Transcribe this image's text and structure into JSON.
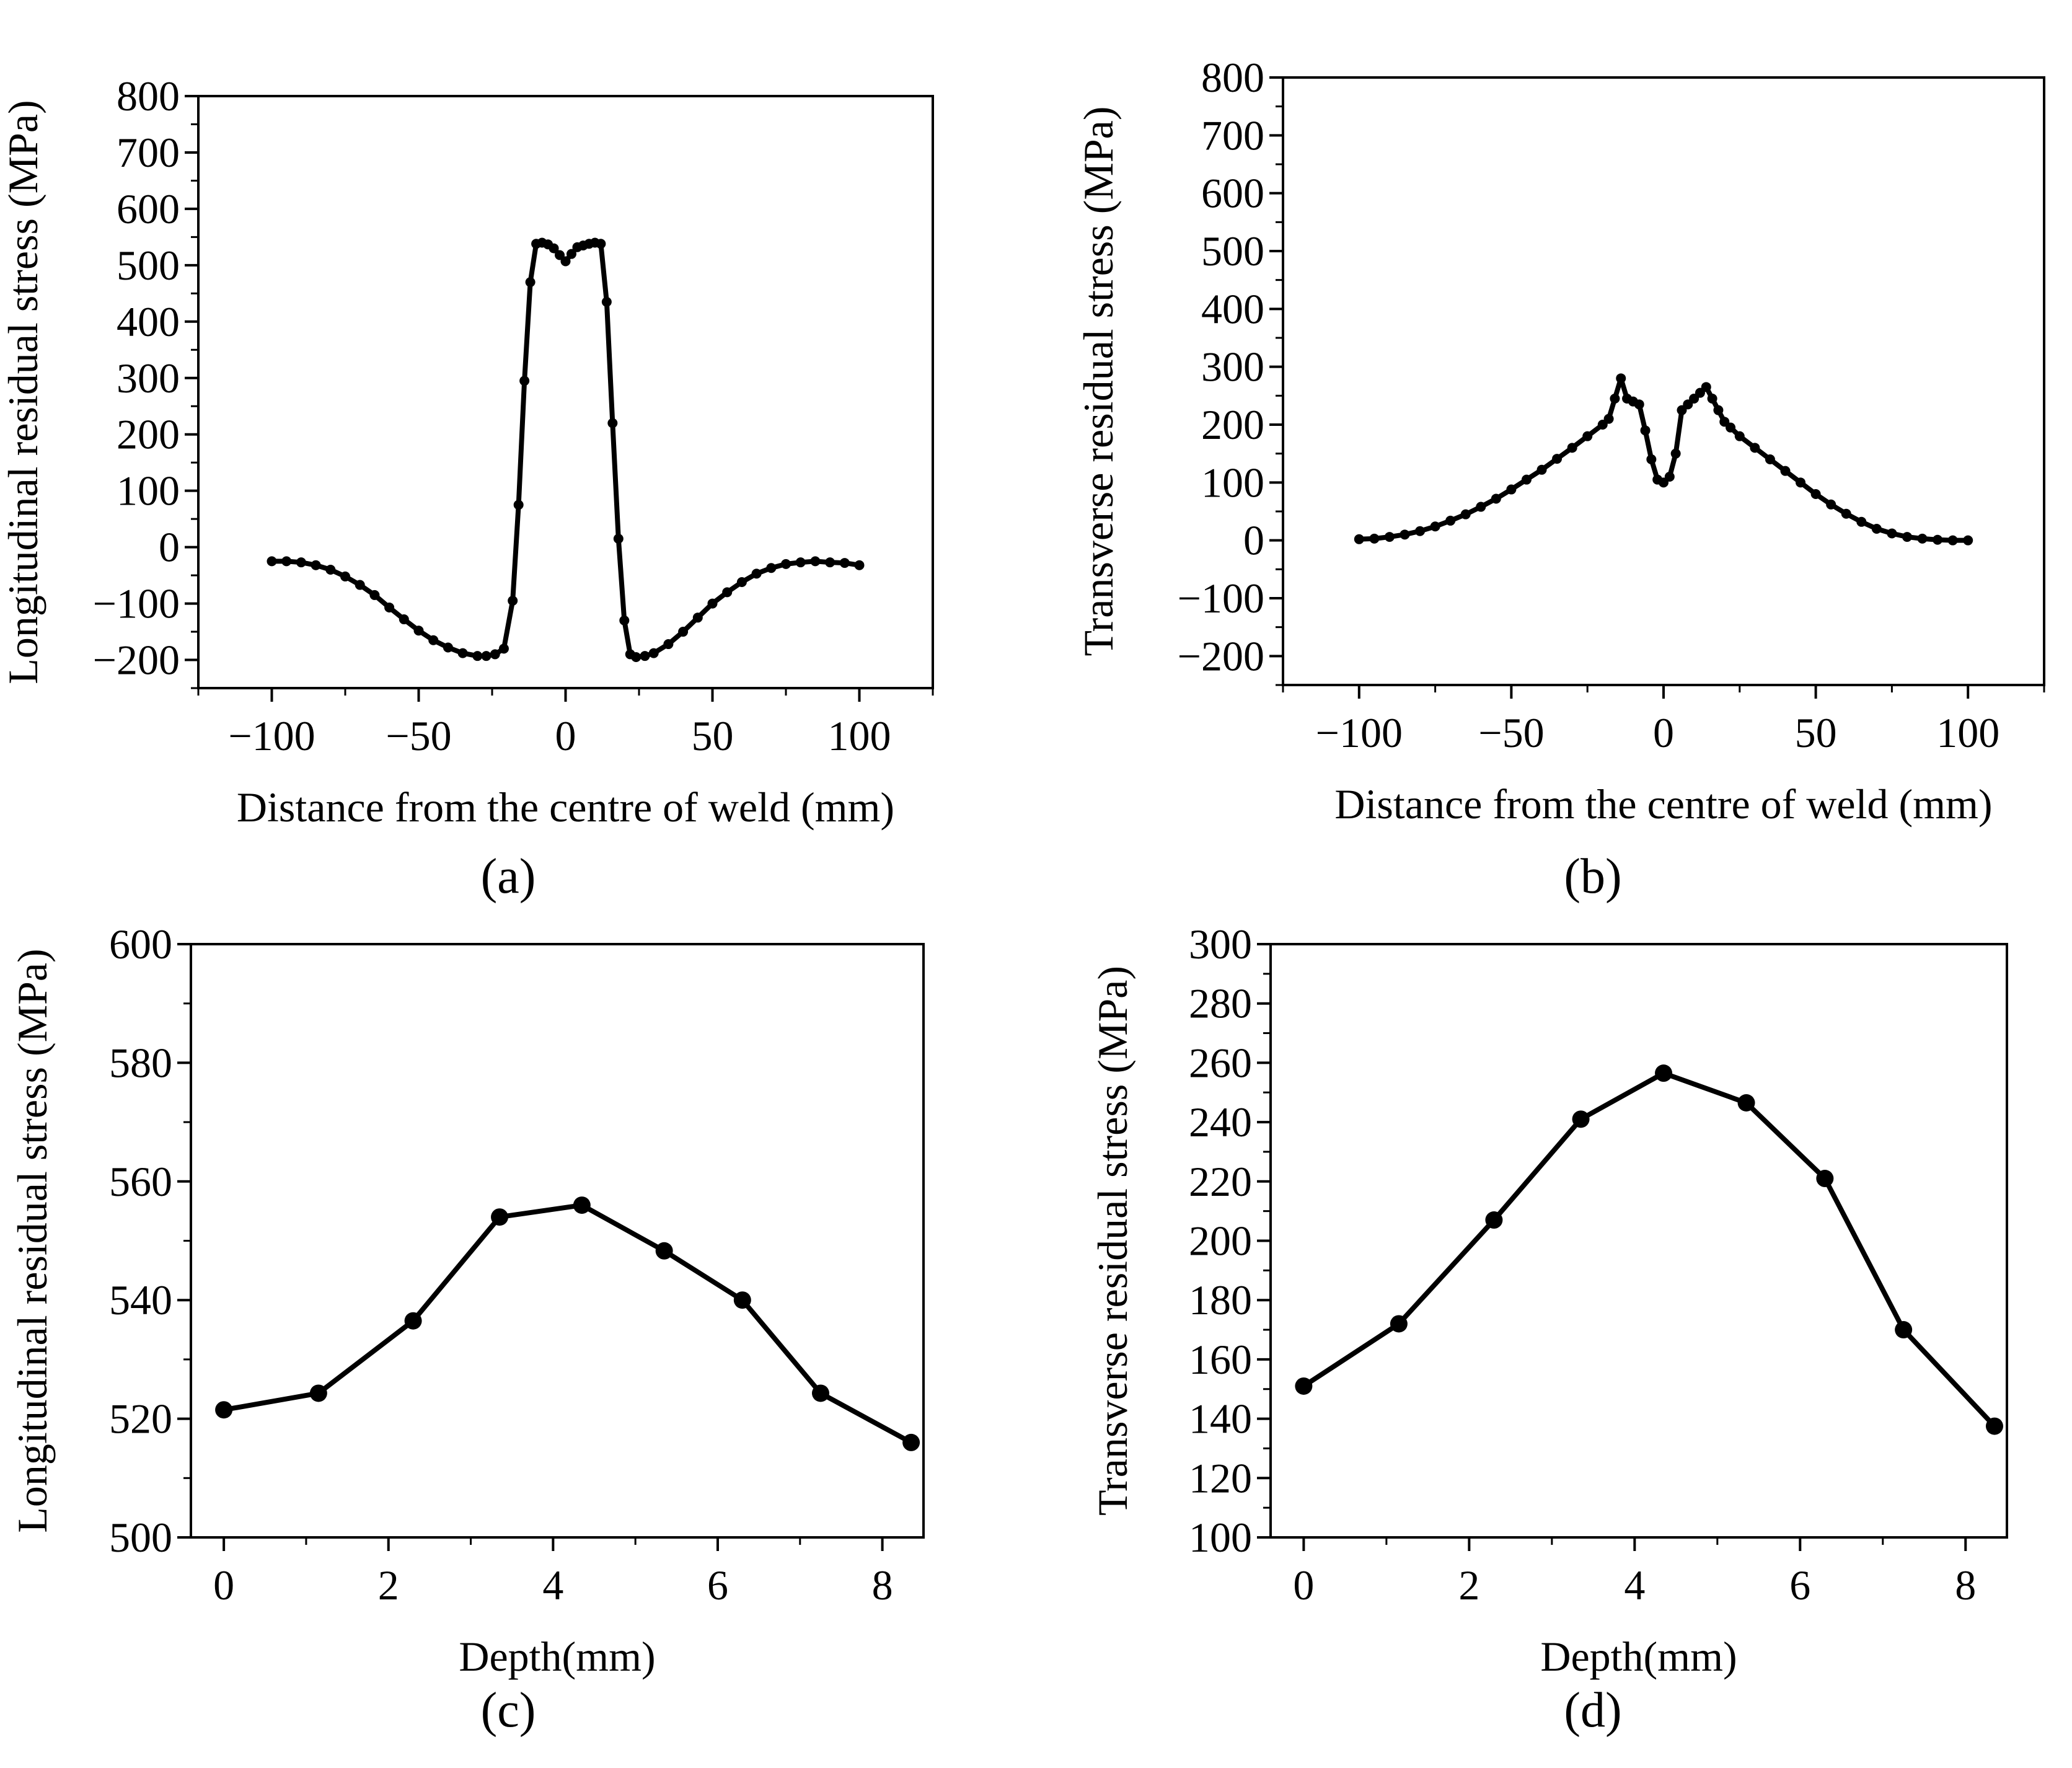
{
  "figure": {
    "panels": [
      "(a)",
      "(b)",
      "(c)",
      "(d)"
    ]
  },
  "chart_data": [
    {
      "id": "a",
      "type": "line",
      "panel_label": "(a)",
      "xlabel": "Distance from the centre of weld (mm)",
      "ylabel": "Longitudinal residual stress (MPa)",
      "xlim": [
        -125,
        125
      ],
      "ylim": [
        -250,
        800
      ],
      "xticks": [
        -100,
        -50,
        0,
        50,
        100
      ],
      "xtick_labels": [
        "−100",
        "−50",
        "0",
        "50",
        "100"
      ],
      "yticks": [
        -200,
        -100,
        0,
        100,
        200,
        300,
        400,
        500,
        600,
        700,
        800
      ],
      "ytick_labels": [
        "−200",
        "−100",
        "0",
        "100",
        "200",
        "300",
        "400",
        "500",
        "600",
        "700",
        "800"
      ],
      "marker_size": "small",
      "series": [
        {
          "name": "Longitudinal",
          "x": [
            -100,
            -95,
            -90,
            -85,
            -80,
            -75,
            -70,
            -65,
            -60,
            -55,
            -50,
            -45,
            -40,
            -35,
            -30,
            -27,
            -24,
            -21,
            -18,
            -16,
            -14,
            -12,
            -10,
            -8,
            -6,
            -4,
            -2,
            0,
            2,
            4,
            6,
            8,
            10,
            12,
            14,
            16,
            18,
            20,
            22,
            24,
            27,
            30,
            35,
            40,
            45,
            50,
            55,
            60,
            65,
            70,
            75,
            80,
            85,
            90,
            95,
            100
          ],
          "y": [
            -25,
            -25,
            -27,
            -32,
            -40,
            -52,
            -67,
            -85,
            -107,
            -128,
            -148,
            -165,
            -178,
            -188,
            -193,
            -193,
            -190,
            -180,
            -95,
            75,
            295,
            470,
            538,
            540,
            537,
            530,
            518,
            507,
            520,
            532,
            535,
            538,
            540,
            538,
            435,
            220,
            15,
            -130,
            -190,
            -195,
            -193,
            -188,
            -172,
            -150,
            -125,
            -100,
            -80,
            -62,
            -47,
            -37,
            -30,
            -27,
            -25,
            -27,
            -28,
            -32
          ]
        }
      ]
    },
    {
      "id": "b",
      "type": "line",
      "panel_label": "(b)",
      "xlabel": "Distance from the centre of weld (mm)",
      "ylabel": "Transverse residual stress (MPa)",
      "xlim": [
        -125,
        125
      ],
      "ylim": [
        -250,
        800
      ],
      "xticks": [
        -100,
        -50,
        0,
        50,
        100
      ],
      "xtick_labels": [
        "−100",
        "−50",
        "0",
        "50",
        "100"
      ],
      "yticks": [
        -200,
        -100,
        0,
        100,
        200,
        300,
        400,
        500,
        600,
        700,
        800
      ],
      "ytick_labels": [
        "−200",
        "−100",
        "0",
        "100",
        "200",
        "300",
        "400",
        "500",
        "600",
        "700",
        "800"
      ],
      "marker_size": "small",
      "series": [
        {
          "name": "Transverse",
          "x": [
            -100,
            -95,
            -90,
            -85,
            -80,
            -75,
            -70,
            -65,
            -60,
            -55,
            -50,
            -45,
            -40,
            -35,
            -30,
            -25,
            -20,
            -18,
            -16,
            -14,
            -12,
            -10,
            -8,
            -6,
            -4,
            -2,
            0,
            2,
            4,
            6,
            8,
            10,
            12,
            14,
            16,
            18,
            20,
            22,
            25,
            30,
            35,
            40,
            45,
            50,
            55,
            60,
            65,
            70,
            75,
            80,
            85,
            90,
            95,
            100
          ],
          "y": [
            2,
            3,
            6,
            10,
            16,
            24,
            34,
            45,
            58,
            72,
            88,
            105,
            122,
            141,
            160,
            180,
            200,
            210,
            245,
            280,
            245,
            240,
            235,
            190,
            140,
            105,
            100,
            110,
            150,
            225,
            235,
            245,
            255,
            265,
            245,
            225,
            205,
            195,
            180,
            160,
            140,
            120,
            100,
            80,
            62,
            46,
            32,
            20,
            12,
            6,
            3,
            1,
            0,
            0
          ]
        }
      ]
    },
    {
      "id": "c",
      "type": "line",
      "panel_label": "(c)",
      "xlabel": "Depth(mm)",
      "ylabel": "Longitudinal residual stress (MPa)",
      "xlim": [
        -0.4,
        8.5
      ],
      "ylim": [
        500,
        600
      ],
      "xticks": [
        0,
        2,
        4,
        6,
        8
      ],
      "xtick_labels": [
        "0",
        "2",
        "4",
        "6",
        "8"
      ],
      "yticks": [
        500,
        520,
        540,
        560,
        580,
        600
      ],
      "ytick_labels": [
        "500",
        "520",
        "540",
        "560",
        "580",
        "600"
      ],
      "marker_size": "large",
      "series": [
        {
          "name": "Longitudinal",
          "x": [
            0,
            1.15,
            2.3,
            3.35,
            4.35,
            5.35,
            6.3,
            7.25,
            8.35
          ],
          "y": [
            521.5,
            524.3,
            536.5,
            554.0,
            556.0,
            548.3,
            540.0,
            524.3,
            516.0
          ]
        }
      ]
    },
    {
      "id": "d",
      "type": "line",
      "panel_label": "(d)",
      "xlabel": "Depth(mm)",
      "ylabel": "Transverse residual stress (MPa)",
      "xlim": [
        -0.4,
        8.5
      ],
      "ylim": [
        100,
        300
      ],
      "xticks": [
        0,
        2,
        4,
        6,
        8
      ],
      "xtick_labels": [
        "0",
        "2",
        "4",
        "6",
        "8"
      ],
      "yticks": [
        100,
        120,
        140,
        160,
        180,
        200,
        220,
        240,
        260,
        280,
        300
      ],
      "ytick_labels": [
        "100",
        "120",
        "140",
        "160",
        "180",
        "200",
        "220",
        "240",
        "260",
        "280",
        "300"
      ],
      "marker_size": "large",
      "series": [
        {
          "name": "Transverse",
          "x": [
            0,
            1.15,
            2.3,
            3.35,
            4.35,
            5.35,
            6.3,
            7.25,
            8.35
          ],
          "y": [
            151,
            172,
            207,
            241,
            256.5,
            246.5,
            221,
            170,
            137.5
          ]
        }
      ]
    }
  ]
}
